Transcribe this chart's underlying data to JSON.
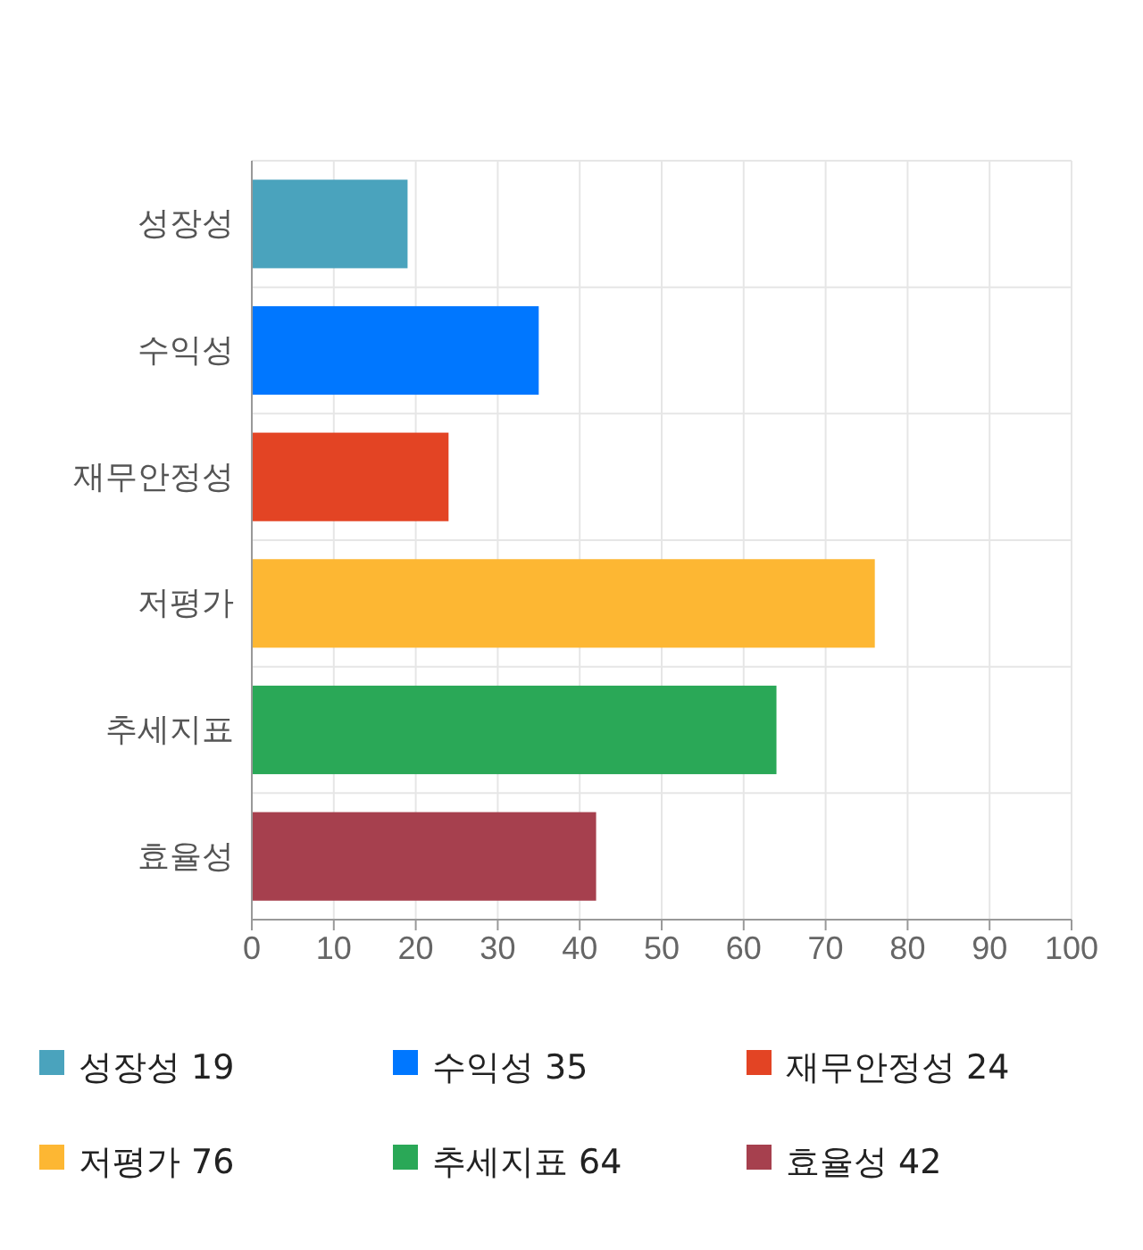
{
  "chart_data": {
    "type": "bar",
    "orientation": "horizontal",
    "stacked": true,
    "categories": [
      "성장성",
      "수익성",
      "재무안정성",
      "저평가",
      "추세지표",
      "효율성"
    ],
    "series": [
      {
        "name": "성장성 19",
        "color": "#4aa3bd",
        "values": [
          19,
          null,
          null,
          null,
          null,
          null
        ]
      },
      {
        "name": "수익성 35",
        "color": "#0077ff",
        "values": [
          null,
          35,
          null,
          null,
          null,
          null
        ]
      },
      {
        "name": "재무안정성 24",
        "color": "#e34424",
        "values": [
          null,
          null,
          24,
          null,
          null,
          null
        ]
      },
      {
        "name": "저평가 76",
        "color": "#fdb733",
        "values": [
          null,
          null,
          null,
          76,
          null,
          null
        ]
      },
      {
        "name": "추세지표 64",
        "color": "#2aa857",
        "values": [
          null,
          null,
          null,
          null,
          64,
          null
        ]
      },
      {
        "name": "효율성 42",
        "color": "#a6404e",
        "values": [
          null,
          null,
          null,
          null,
          null,
          42
        ]
      }
    ],
    "xlim": [
      0,
      100
    ],
    "xticks": [
      0,
      10,
      20,
      30,
      40,
      50,
      60,
      70,
      80,
      90,
      100
    ],
    "grid": true,
    "legend": "bottom"
  }
}
